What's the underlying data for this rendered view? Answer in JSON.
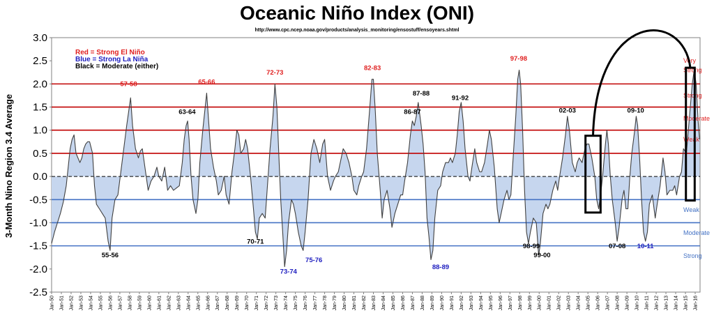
{
  "chart_data": {
    "type": "area",
    "title": "Oceanic Niño Index (ONI)",
    "subtitle": "http://www.cpc.ncep.noaa.gov/products/analysis_monitoring/ensostuff/ensoyears.shtml",
    "ylabel": "3-Month Nino Region 3.4 Average",
    "xlabel": "",
    "ylim": [
      -2.5,
      3.0
    ],
    "yticks": [
      "3.0",
      "2.5",
      "2.0",
      "1.5",
      "1.0",
      "0.5",
      "0.0",
      "-0.5",
      "-1.0",
      "-1.5",
      "-2.0",
      "-2.5"
    ],
    "xtick_labels": [
      "Jan-50",
      "Jan-51",
      "Jan-52",
      "Jan-53",
      "Jan-54",
      "Jan-55",
      "Jan-56",
      "Jan-57",
      "Jan-58",
      "Jan-59",
      "Jan-60",
      "Jan-61",
      "Jan-62",
      "Jan-63",
      "Jan-64",
      "Jan-65",
      "Jan-66",
      "Jan-67",
      "Jan-68",
      "Jan-69",
      "Jan-70",
      "Jan-71",
      "Jan-72",
      "Jan-73",
      "Jan-74",
      "Jan-75",
      "Jan-76",
      "Jan-77",
      "Jan-78",
      "Jan-79",
      "Jan-80",
      "Jan-81",
      "Jan-82",
      "Jan-83",
      "Jan-84",
      "Jan-85",
      "Jan-86",
      "Jan-87",
      "Jan-88",
      "Jan-89",
      "Jan-90",
      "Jan-91",
      "Jan-92",
      "Jan-93",
      "Jan-94",
      "Jan-95",
      "Jan-96",
      "Jan-97",
      "Jan-98",
      "Jan-99",
      "Jan-00",
      "Jan-01",
      "Jan-02",
      "Jan-03",
      "Jan-04",
      "Jan-05",
      "Jan-06",
      "Jan-07",
      "Jan-08",
      "Jan-09",
      "Jan-10",
      "Jan-11",
      "Jan-12",
      "Jan-13",
      "Jan-14",
      "Jan-15",
      "Jan-16"
    ],
    "colors": {
      "fill": "#c6d6ee",
      "line": "#404040",
      "el_nino_lines": "#c00000",
      "la_nina_lines": "#4472c4",
      "red_text": "#e02020",
      "blue_text": "#2020c0",
      "black_text": "#000000"
    },
    "threshold_lines": [
      {
        "y": 2.0,
        "color": "#c00000"
      },
      {
        "y": 1.5,
        "color": "#c00000"
      },
      {
        "y": 1.0,
        "color": "#c00000"
      },
      {
        "y": 0.5,
        "color": "#c00000"
      },
      {
        "y": -0.5,
        "color": "#4472c4"
      },
      {
        "y": -1.0,
        "color": "#4472c4"
      },
      {
        "y": -1.5,
        "color": "#4472c4"
      }
    ],
    "legend": [
      {
        "text": "Red = Strong El Niño",
        "color": "#e02020"
      },
      {
        "text": "Blue = Strong La Niña",
        "color": "#2020c0"
      },
      {
        "text": "Black = Moderate (either)",
        "color": "#000000"
      }
    ],
    "side_labels": [
      {
        "text": "Very",
        "y": 2.5,
        "color": "#e02020"
      },
      {
        "text": "Strong",
        "y": 2.3,
        "color": "#e02020"
      },
      {
        "text": "Strong",
        "y": 1.75,
        "color": "#e02020"
      },
      {
        "text": "Moderate",
        "y": 1.25,
        "color": "#e02020"
      },
      {
        "text": "Weak",
        "y": 0.8,
        "color": "#e02020"
      },
      {
        "text": "Weak",
        "y": -0.72,
        "color": "#4472c4"
      },
      {
        "text": "Moderate",
        "y": -1.22,
        "color": "#4472c4"
      },
      {
        "text": "Strong",
        "y": -1.72,
        "color": "#4472c4"
      }
    ],
    "annotations": [
      {
        "text": "57-58",
        "x": 1957.9,
        "y": 1.95,
        "color": "#e02020"
      },
      {
        "text": "65-66",
        "x": 1965.9,
        "y": 2.0,
        "color": "#e02020"
      },
      {
        "text": "72-73",
        "x": 1972.9,
        "y": 2.2,
        "color": "#e02020"
      },
      {
        "text": "82-83",
        "x": 1982.9,
        "y": 2.3,
        "color": "#e02020"
      },
      {
        "text": "97-98",
        "x": 1997.9,
        "y": 2.5,
        "color": "#e02020"
      },
      {
        "text": "63-64",
        "x": 1963.9,
        "y": 1.35,
        "color": "#000000"
      },
      {
        "text": "87-88",
        "x": 1987.9,
        "y": 1.75,
        "color": "#000000"
      },
      {
        "text": "86-87",
        "x": 1987.0,
        "y": 1.35,
        "color": "#000000"
      },
      {
        "text": "91-92",
        "x": 1991.9,
        "y": 1.65,
        "color": "#000000"
      },
      {
        "text": "02-03",
        "x": 2002.9,
        "y": 1.38,
        "color": "#000000"
      },
      {
        "text": "09-10",
        "x": 2009.9,
        "y": 1.38,
        "color": "#000000"
      },
      {
        "text": "55-56",
        "x": 1956.0,
        "y": -1.75,
        "color": "#000000"
      },
      {
        "text": "70-71",
        "x": 1970.9,
        "y": -1.45,
        "color": "#000000"
      },
      {
        "text": "73-74",
        "x": 1974.3,
        "y": -2.1,
        "color": "#2020c0"
      },
      {
        "text": "75-76",
        "x": 1976.9,
        "y": -1.85,
        "color": "#2020c0"
      },
      {
        "text": "88-89",
        "x": 1989.9,
        "y": -2.0,
        "color": "#2020c0"
      },
      {
        "text": "98-99",
        "x": 1999.2,
        "y": -1.55,
        "color": "#000000"
      },
      {
        "text": "99-00",
        "x": 2000.3,
        "y": -1.75,
        "color": "#000000"
      },
      {
        "text": "07-08",
        "x": 2008.0,
        "y": -1.55,
        "color": "#000000"
      },
      {
        "text": "10-11",
        "x": 2010.9,
        "y": -1.55,
        "color": "#2020c0"
      }
    ],
    "highlight_boxes": [
      {
        "x0": 2004.75,
        "x1": 2006.3,
        "y0": -0.78,
        "y1": 0.88
      },
      {
        "x0": 2015.05,
        "x1": 2015.95,
        "y0": -0.52,
        "y1": 2.35
      }
    ],
    "points": [
      [
        1950.0,
        -1.45
      ],
      [
        1950.3,
        -1.2
      ],
      [
        1950.6,
        -1.0
      ],
      [
        1950.9,
        -0.8
      ],
      [
        1951.2,
        -0.55
      ],
      [
        1951.5,
        -0.2
      ],
      [
        1951.7,
        0.2
      ],
      [
        1951.9,
        0.6
      ],
      [
        1952.1,
        0.8
      ],
      [
        1952.3,
        0.9
      ],
      [
        1952.5,
        0.5
      ],
      [
        1952.7,
        0.4
      ],
      [
        1952.9,
        0.3
      ],
      [
        1953.1,
        0.4
      ],
      [
        1953.3,
        0.6
      ],
      [
        1953.5,
        0.7
      ],
      [
        1953.7,
        0.75
      ],
      [
        1953.9,
        0.75
      ],
      [
        1954.2,
        0.5
      ],
      [
        1954.4,
        -0.2
      ],
      [
        1954.6,
        -0.6
      ],
      [
        1954.9,
        -0.7
      ],
      [
        1955.2,
        -0.8
      ],
      [
        1955.5,
        -0.9
      ],
      [
        1955.8,
        -1.4
      ],
      [
        1956.0,
        -1.6
      ],
      [
        1956.2,
        -0.9
      ],
      [
        1956.5,
        -0.5
      ],
      [
        1956.8,
        -0.4
      ],
      [
        1957.1,
        0.1
      ],
      [
        1957.4,
        0.6
      ],
      [
        1957.7,
        1.1
      ],
      [
        1957.9,
        1.4
      ],
      [
        1958.1,
        1.7
      ],
      [
        1958.3,
        1.1
      ],
      [
        1958.6,
        0.6
      ],
      [
        1958.9,
        0.4
      ],
      [
        1959.1,
        0.55
      ],
      [
        1959.3,
        0.6
      ],
      [
        1959.5,
        0.3
      ],
      [
        1959.7,
        0.0
      ],
      [
        1959.9,
        -0.3
      ],
      [
        1960.2,
        -0.1
      ],
      [
        1960.5,
        0.0
      ],
      [
        1960.8,
        0.2
      ],
      [
        1961.0,
        0.0
      ],
      [
        1961.3,
        -0.1
      ],
      [
        1961.6,
        0.2
      ],
      [
        1961.9,
        -0.3
      ],
      [
        1962.2,
        -0.2
      ],
      [
        1962.5,
        -0.3
      ],
      [
        1962.8,
        -0.25
      ],
      [
        1963.1,
        -0.2
      ],
      [
        1963.4,
        0.3
      ],
      [
        1963.6,
        0.8
      ],
      [
        1963.8,
        1.1
      ],
      [
        1963.95,
        1.2
      ],
      [
        1964.1,
        0.8
      ],
      [
        1964.3,
        0.0
      ],
      [
        1964.5,
        -0.5
      ],
      [
        1964.8,
        -0.8
      ],
      [
        1965.0,
        -0.5
      ],
      [
        1965.2,
        0.3
      ],
      [
        1965.5,
        1.0
      ],
      [
        1965.7,
        1.4
      ],
      [
        1965.9,
        1.8
      ],
      [
        1966.1,
        1.2
      ],
      [
        1966.3,
        0.6
      ],
      [
        1966.6,
        0.2
      ],
      [
        1966.9,
        -0.1
      ],
      [
        1967.1,
        -0.4
      ],
      [
        1967.4,
        -0.3
      ],
      [
        1967.7,
        0.0
      ],
      [
        1967.9,
        -0.4
      ],
      [
        1968.2,
        -0.6
      ],
      [
        1968.5,
        0.1
      ],
      [
        1968.8,
        0.6
      ],
      [
        1969.0,
        1.0
      ],
      [
        1969.2,
        0.9
      ],
      [
        1969.4,
        0.5
      ],
      [
        1969.7,
        0.6
      ],
      [
        1969.9,
        0.8
      ],
      [
        1970.1,
        0.6
      ],
      [
        1970.4,
        0.0
      ],
      [
        1970.7,
        -0.7
      ],
      [
        1970.9,
        -1.2
      ],
      [
        1971.1,
        -1.35
      ],
      [
        1971.3,
        -0.9
      ],
      [
        1971.6,
        -0.8
      ],
      [
        1971.9,
        -0.9
      ],
      [
        1972.1,
        -0.3
      ],
      [
        1972.4,
        0.6
      ],
      [
        1972.7,
        1.3
      ],
      [
        1972.9,
        2.0
      ],
      [
        1973.1,
        1.5
      ],
      [
        1973.3,
        0.5
      ],
      [
        1973.5,
        -0.5
      ],
      [
        1973.7,
        -1.2
      ],
      [
        1973.9,
        -1.95
      ],
      [
        1974.1,
        -1.6
      ],
      [
        1974.3,
        -1.0
      ],
      [
        1974.6,
        -0.5
      ],
      [
        1974.8,
        -0.6
      ],
      [
        1975.0,
        -0.8
      ],
      [
        1975.3,
        -1.2
      ],
      [
        1975.6,
        -1.5
      ],
      [
        1975.8,
        -1.6
      ],
      [
        1976.0,
        -1.2
      ],
      [
        1976.3,
        -0.5
      ],
      [
        1976.6,
        0.5
      ],
      [
        1976.9,
        0.8
      ],
      [
        1977.2,
        0.6
      ],
      [
        1977.5,
        0.3
      ],
      [
        1977.8,
        0.7
      ],
      [
        1978.0,
        0.8
      ],
      [
        1978.3,
        0.0
      ],
      [
        1978.6,
        -0.3
      ],
      [
        1978.9,
        -0.1
      ],
      [
        1979.1,
        0.0
      ],
      [
        1979.4,
        0.1
      ],
      [
        1979.7,
        0.4
      ],
      [
        1979.9,
        0.6
      ],
      [
        1980.2,
        0.5
      ],
      [
        1980.5,
        0.3
      ],
      [
        1980.8,
        0.0
      ],
      [
        1981.0,
        -0.3
      ],
      [
        1981.3,
        -0.4
      ],
      [
        1981.5,
        -0.2
      ],
      [
        1981.8,
        0.0
      ],
      [
        1982.0,
        0.1
      ],
      [
        1982.3,
        0.6
      ],
      [
        1982.6,
        1.4
      ],
      [
        1982.85,
        2.1
      ],
      [
        1983.0,
        2.1
      ],
      [
        1983.2,
        1.4
      ],
      [
        1983.4,
        0.5
      ],
      [
        1983.7,
        -0.3
      ],
      [
        1983.9,
        -0.9
      ],
      [
        1984.1,
        -0.5
      ],
      [
        1984.4,
        -0.3
      ],
      [
        1984.7,
        -0.7
      ],
      [
        1984.9,
        -1.1
      ],
      [
        1985.2,
        -0.8
      ],
      [
        1985.5,
        -0.6
      ],
      [
        1985.8,
        -0.4
      ],
      [
        1986.0,
        -0.4
      ],
      [
        1986.2,
        -0.1
      ],
      [
        1986.5,
        0.3
      ],
      [
        1986.8,
        0.9
      ],
      [
        1987.0,
        1.2
      ],
      [
        1987.2,
        1.1
      ],
      [
        1987.4,
        1.3
      ],
      [
        1987.6,
        1.6
      ],
      [
        1987.9,
        1.1
      ],
      [
        1988.1,
        0.7
      ],
      [
        1988.3,
        0.1
      ],
      [
        1988.5,
        -0.9
      ],
      [
        1988.7,
        -1.3
      ],
      [
        1988.9,
        -1.8
      ],
      [
        1989.1,
        -1.6
      ],
      [
        1989.3,
        -0.9
      ],
      [
        1989.6,
        -0.3
      ],
      [
        1989.9,
        -0.2
      ],
      [
        1990.1,
        0.1
      ],
      [
        1990.4,
        0.3
      ],
      [
        1990.7,
        0.3
      ],
      [
        1990.9,
        0.4
      ],
      [
        1991.1,
        0.3
      ],
      [
        1991.4,
        0.5
      ],
      [
        1991.6,
        0.9
      ],
      [
        1991.8,
        1.4
      ],
      [
        1992.0,
        1.6
      ],
      [
        1992.2,
        1.2
      ],
      [
        1992.4,
        0.6
      ],
      [
        1992.7,
        0.0
      ],
      [
        1992.9,
        -0.1
      ],
      [
        1993.1,
        0.2
      ],
      [
        1993.4,
        0.6
      ],
      [
        1993.6,
        0.3
      ],
      [
        1993.9,
        0.1
      ],
      [
        1994.1,
        0.1
      ],
      [
        1994.4,
        0.3
      ],
      [
        1994.7,
        0.7
      ],
      [
        1994.9,
        1.0
      ],
      [
        1995.1,
        0.8
      ],
      [
        1995.4,
        0.2
      ],
      [
        1995.7,
        -0.7
      ],
      [
        1995.9,
        -1.0
      ],
      [
        1996.1,
        -0.8
      ],
      [
        1996.4,
        -0.5
      ],
      [
        1996.7,
        -0.3
      ],
      [
        1996.9,
        -0.5
      ],
      [
        1997.1,
        -0.4
      ],
      [
        1997.3,
        0.3
      ],
      [
        1997.6,
        1.3
      ],
      [
        1997.8,
        2.1
      ],
      [
        1997.95,
        2.3
      ],
      [
        1998.1,
        2.0
      ],
      [
        1998.3,
        1.0
      ],
      [
        1998.5,
        -0.3
      ],
      [
        1998.7,
        -1.2
      ],
      [
        1998.9,
        -1.45
      ],
      [
        1999.1,
        -1.2
      ],
      [
        1999.4,
        -0.9
      ],
      [
        1999.7,
        -1.0
      ],
      [
        1999.95,
        -1.7
      ],
      [
        2000.1,
        -1.5
      ],
      [
        2000.4,
        -0.8
      ],
      [
        2000.7,
        -0.6
      ],
      [
        2000.9,
        -0.7
      ],
      [
        2001.1,
        -0.6
      ],
      [
        2001.4,
        -0.3
      ],
      [
        2001.7,
        -0.1
      ],
      [
        2001.9,
        -0.3
      ],
      [
        2002.1,
        0.0
      ],
      [
        2002.4,
        0.4
      ],
      [
        2002.7,
        0.9
      ],
      [
        2002.9,
        1.3
      ],
      [
        2003.1,
        1.0
      ],
      [
        2003.4,
        0.3
      ],
      [
        2003.7,
        0.1
      ],
      [
        2003.9,
        0.3
      ],
      [
        2004.1,
        0.4
      ],
      [
        2004.4,
        0.3
      ],
      [
        2004.7,
        0.6
      ],
      [
        2004.9,
        0.7
      ],
      [
        2005.1,
        0.7
      ],
      [
        2005.4,
        0.4
      ],
      [
        2005.7,
        0.0
      ],
      [
        2005.9,
        -0.5
      ],
      [
        2006.1,
        -0.7
      ],
      [
        2006.3,
        -0.4
      ],
      [
        2006.5,
        0.0
      ],
      [
        2006.8,
        0.7
      ],
      [
        2006.95,
        1.0
      ],
      [
        2007.1,
        0.7
      ],
      [
        2007.3,
        0.0
      ],
      [
        2007.5,
        -0.5
      ],
      [
        2007.8,
        -1.0
      ],
      [
        2008.0,
        -1.4
      ],
      [
        2008.2,
        -1.1
      ],
      [
        2008.5,
        -0.5
      ],
      [
        2008.7,
        -0.3
      ],
      [
        2008.9,
        -0.7
      ],
      [
        2009.1,
        -0.7
      ],
      [
        2009.3,
        0.0
      ],
      [
        2009.5,
        0.5
      ],
      [
        2009.8,
        1.0
      ],
      [
        2009.95,
        1.3
      ],
      [
        2010.1,
        1.1
      ],
      [
        2010.3,
        0.4
      ],
      [
        2010.5,
        -0.5
      ],
      [
        2010.7,
        -1.2
      ],
      [
        2010.9,
        -1.4
      ],
      [
        2011.1,
        -1.2
      ],
      [
        2011.3,
        -0.6
      ],
      [
        2011.6,
        -0.4
      ],
      [
        2011.9,
        -0.9
      ],
      [
        2012.1,
        -0.6
      ],
      [
        2012.4,
        -0.2
      ],
      [
        2012.7,
        0.4
      ],
      [
        2012.9,
        0.1
      ],
      [
        2013.1,
        -0.4
      ],
      [
        2013.4,
        -0.3
      ],
      [
        2013.7,
        -0.3
      ],
      [
        2013.9,
        -0.2
      ],
      [
        2014.1,
        -0.4
      ],
      [
        2014.4,
        0.0
      ],
      [
        2014.6,
        0.1
      ],
      [
        2014.8,
        0.6
      ],
      [
        2014.95,
        0.55
      ],
      [
        2015.1,
        0.5
      ],
      [
        2015.3,
        1.0
      ],
      [
        2015.5,
        1.5
      ],
      [
        2015.7,
        2.0
      ],
      [
        2015.9,
        2.3
      ],
      [
        2016.1,
        2.0
      ],
      [
        2016.3,
        1.2
      ],
      [
        2016.45,
        0.8
      ]
    ]
  }
}
